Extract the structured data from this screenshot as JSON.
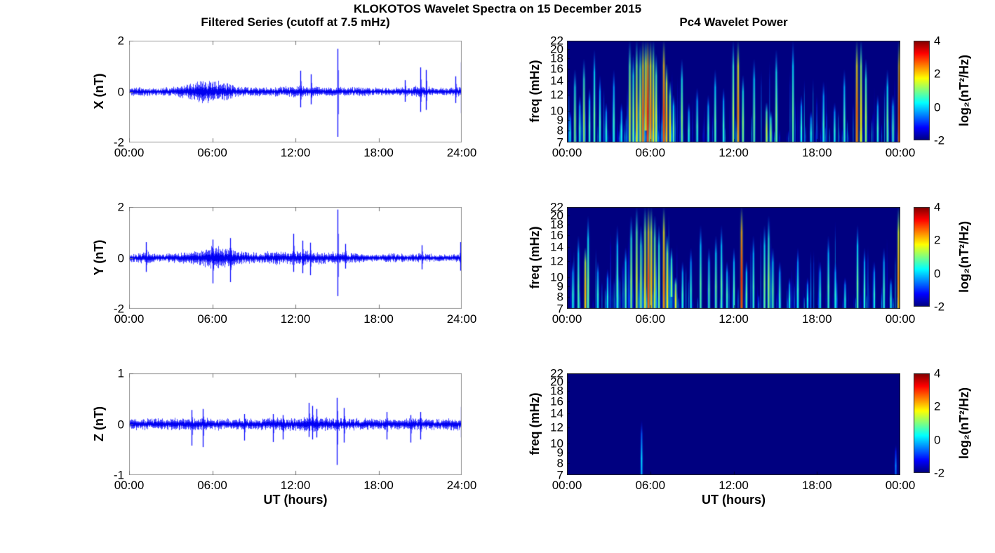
{
  "figure": {
    "title": "KLOKOTOS Wavelet Spectra on 15 December 2015",
    "background": "#ffffff",
    "line_color": "#0000ff",
    "colormap_name": "jet"
  },
  "chart_data": [
    {
      "type": "line",
      "panel": "left-top",
      "title": "Filtered Series (cutoff at 7.5 mHz)",
      "ylabel": "X (nT)",
      "ylim": [
        -2,
        2
      ],
      "yticks": [
        2,
        0,
        -2
      ],
      "xlim_hours": [
        0,
        24
      ],
      "xticks_hours": [
        0,
        6,
        12,
        18,
        24
      ],
      "xtick_labels": [
        "00:00",
        "06:00",
        "12:00",
        "18:00",
        "24:00"
      ],
      "line_color": "#0000ff",
      "seed": 11,
      "noise_envelope": [
        [
          0,
          0.18
        ],
        [
          1,
          0.2
        ],
        [
          2,
          0.17
        ],
        [
          3,
          0.2
        ],
        [
          4,
          0.3
        ],
        [
          4.7,
          0.4
        ],
        [
          5.4,
          0.52
        ],
        [
          5.9,
          0.48
        ],
        [
          6.4,
          0.45
        ],
        [
          7,
          0.38
        ],
        [
          7.6,
          0.28
        ],
        [
          8.2,
          0.22
        ],
        [
          9,
          0.2
        ],
        [
          10,
          0.2
        ],
        [
          11,
          0.22
        ],
        [
          12,
          0.26
        ],
        [
          12.6,
          0.24
        ],
        [
          13.2,
          0.22
        ],
        [
          14,
          0.18
        ],
        [
          15,
          0.2
        ],
        [
          16,
          0.2
        ],
        [
          17,
          0.2
        ],
        [
          18,
          0.17
        ],
        [
          19,
          0.17
        ],
        [
          20,
          0.2
        ],
        [
          20.8,
          0.26
        ],
        [
          21.5,
          0.24
        ],
        [
          22,
          0.17
        ],
        [
          23,
          0.17
        ],
        [
          23.7,
          0.22
        ],
        [
          24,
          0.3
        ]
      ],
      "spikes": [
        [
          12.35,
          0.82,
          -0.62
        ],
        [
          13.1,
          0.68,
          -0.5
        ],
        [
          15.02,
          1.68,
          -1.78
        ],
        [
          19.9,
          0.45,
          -0.4
        ],
        [
          21.0,
          0.95,
          -0.8
        ],
        [
          21.4,
          0.85,
          -0.72
        ],
        [
          23.55,
          0.6,
          -0.45
        ],
        [
          23.97,
          1.15,
          -0.85
        ]
      ]
    },
    {
      "type": "line",
      "panel": "left-middle",
      "ylabel": "Y (nT)",
      "ylim": [
        -2,
        2
      ],
      "yticks": [
        2,
        0,
        -2
      ],
      "xlim_hours": [
        0,
        24
      ],
      "xticks_hours": [
        0,
        6,
        12,
        18,
        24
      ],
      "xtick_labels": [
        "00:00",
        "06:00",
        "12:00",
        "18:00",
        "24:00"
      ],
      "line_color": "#0000ff",
      "seed": 22,
      "noise_envelope": [
        [
          0,
          0.2
        ],
        [
          0.8,
          0.24
        ],
        [
          1.3,
          0.28
        ],
        [
          2,
          0.2
        ],
        [
          3,
          0.2
        ],
        [
          4,
          0.26
        ],
        [
          5,
          0.32
        ],
        [
          5.7,
          0.45
        ],
        [
          6.2,
          0.52
        ],
        [
          6.8,
          0.45
        ],
        [
          7.3,
          0.5
        ],
        [
          7.8,
          0.35
        ],
        [
          8.5,
          0.26
        ],
        [
          9.5,
          0.26
        ],
        [
          10.5,
          0.3
        ],
        [
          11.5,
          0.3
        ],
        [
          12.5,
          0.3
        ],
        [
          13.5,
          0.28
        ],
        [
          14.5,
          0.26
        ],
        [
          15.5,
          0.24
        ],
        [
          16.5,
          0.22
        ],
        [
          17,
          0.15
        ],
        [
          18,
          0.16
        ],
        [
          19,
          0.22
        ],
        [
          20,
          0.15
        ],
        [
          21,
          0.2
        ],
        [
          22,
          0.16
        ],
        [
          23,
          0.16
        ],
        [
          23.7,
          0.2
        ],
        [
          24,
          0.3
        ]
      ],
      "spikes": [
        [
          1.2,
          0.62,
          -0.55
        ],
        [
          6.05,
          0.72,
          -1.0
        ],
        [
          7.3,
          0.78,
          -0.95
        ],
        [
          11.85,
          0.95,
          -0.55
        ],
        [
          12.5,
          0.68,
          -0.6
        ],
        [
          13.05,
          0.6,
          -0.68
        ],
        [
          15.02,
          1.9,
          -1.5
        ],
        [
          15.6,
          0.55,
          -0.42
        ],
        [
          21.1,
          0.5,
          -0.45
        ],
        [
          23.92,
          0.62,
          -0.5
        ]
      ]
    },
    {
      "type": "line",
      "panel": "left-bottom",
      "ylabel": "Z (nT)",
      "xlabel": "UT (hours)",
      "ylim": [
        -1,
        1
      ],
      "yticks": [
        1,
        0,
        -1
      ],
      "xlim_hours": [
        0,
        24
      ],
      "xticks_hours": [
        0,
        6,
        12,
        18,
        24
      ],
      "xtick_labels": [
        "00:00",
        "06:00",
        "12:00",
        "18:00",
        "24:00"
      ],
      "line_color": "#0000ff",
      "seed": 33,
      "noise_envelope": [
        [
          0,
          0.13
        ],
        [
          2,
          0.12
        ],
        [
          4,
          0.13
        ],
        [
          5,
          0.14
        ],
        [
          6,
          0.13
        ],
        [
          8,
          0.12
        ],
        [
          10,
          0.13
        ],
        [
          12,
          0.15
        ],
        [
          13,
          0.17
        ],
        [
          14,
          0.15
        ],
        [
          15,
          0.14
        ],
        [
          16,
          0.13
        ],
        [
          18,
          0.13
        ],
        [
          20,
          0.12
        ],
        [
          21,
          0.14
        ],
        [
          22,
          0.12
        ],
        [
          24,
          0.14
        ]
      ],
      "spikes": [
        [
          4.5,
          0.28,
          -0.42
        ],
        [
          5.3,
          0.3,
          -0.45
        ],
        [
          8.3,
          0.2,
          -0.32
        ],
        [
          10.4,
          0.2,
          -0.35
        ],
        [
          11.1,
          0.18,
          -0.3
        ],
        [
          12.95,
          0.42,
          -0.25
        ],
        [
          13.2,
          0.36,
          -0.3
        ],
        [
          13.5,
          0.3,
          -0.26
        ],
        [
          15.0,
          0.52,
          -0.8
        ],
        [
          15.5,
          0.32,
          -0.36
        ],
        [
          18.6,
          0.24,
          -0.3
        ],
        [
          20.3,
          0.18,
          -0.36
        ],
        [
          21.0,
          0.24,
          -0.3
        ],
        [
          23.95,
          0.34,
          -0.26
        ]
      ]
    },
    {
      "type": "heatmap",
      "panel": "right-top",
      "title": "Pc4 Wavelet Power",
      "ylabel": "freq (mHz)",
      "yscale": "log",
      "ylim": [
        7,
        22
      ],
      "yticks": [
        7,
        8,
        9,
        10,
        12,
        14,
        16,
        18,
        20,
        22
      ],
      "xlim_hours": [
        0,
        24
      ],
      "xticks_hours": [
        0,
        6,
        12,
        18,
        24
      ],
      "xtick_labels": [
        "00:00",
        "06:00",
        "12:00",
        "18:00",
        "00:00"
      ],
      "background_value": -2,
      "colorbar": {
        "label": "log₂(nT²/Hz)",
        "ticks": [
          4,
          2,
          0,
          -2
        ],
        "range": [
          -2,
          4
        ],
        "colormap": "jet"
      },
      "streaks": [
        [
          0.2,
          7,
          10,
          0.4
        ],
        [
          0.55,
          7,
          16,
          1.1
        ],
        [
          0.9,
          7,
          12,
          0.6
        ],
        [
          1.2,
          7,
          18,
          1.3
        ],
        [
          1.6,
          7,
          13,
          0.7
        ],
        [
          1.95,
          7,
          20,
          0.9
        ],
        [
          2.35,
          7,
          15,
          0.6
        ],
        [
          2.8,
          7,
          11,
          0.5
        ],
        [
          3.35,
          7,
          16,
          0.6
        ],
        [
          3.9,
          7,
          11,
          0.4
        ],
        [
          4.5,
          7,
          22,
          1.6
        ],
        [
          4.75,
          7,
          19,
          1.2
        ],
        [
          5.0,
          7,
          22,
          1.9
        ],
        [
          5.25,
          7,
          21,
          1.6
        ],
        [
          5.45,
          7,
          22,
          2.7
        ],
        [
          5.65,
          8,
          22,
          2.2
        ],
        [
          5.8,
          7,
          22,
          3.1
        ],
        [
          6.0,
          7,
          22,
          2.5
        ],
        [
          6.2,
          7,
          22,
          2.0
        ],
        [
          6.4,
          7,
          19,
          1.5
        ],
        [
          6.95,
          7,
          22,
          2.9
        ],
        [
          7.15,
          7,
          17,
          2.3
        ],
        [
          7.4,
          7,
          14,
          1.7
        ],
        [
          7.65,
          7,
          12,
          0.9
        ],
        [
          8.25,
          7,
          18,
          1.1
        ],
        [
          8.75,
          7,
          11,
          0.5
        ],
        [
          9.35,
          7,
          13,
          0.6
        ],
        [
          10.15,
          7,
          12,
          0.6
        ],
        [
          10.65,
          7,
          16,
          0.8
        ],
        [
          11.25,
          7,
          13,
          0.6
        ],
        [
          11.95,
          7,
          22,
          1.3
        ],
        [
          12.3,
          7,
          22,
          2.5
        ],
        [
          12.65,
          7,
          15,
          1.1
        ],
        [
          13.45,
          7,
          18,
          0.9
        ],
        [
          14.35,
          7,
          11,
          1.5
        ],
        [
          14.65,
          7,
          10,
          1.2
        ],
        [
          15.05,
          7,
          20,
          1.1
        ],
        [
          16.25,
          7,
          22,
          0.9
        ],
        [
          16.85,
          7,
          12,
          0.5
        ],
        [
          17.55,
          7,
          10,
          0.4
        ],
        [
          18.45,
          7,
          14,
          0.6
        ],
        [
          19.25,
          7,
          11,
          0.5
        ],
        [
          19.95,
          7,
          16,
          0.7
        ],
        [
          20.85,
          7,
          22,
          2.7
        ],
        [
          21.15,
          7,
          22,
          1.9
        ],
        [
          21.5,
          7,
          18,
          1.3
        ],
        [
          22.35,
          7,
          12,
          0.6
        ],
        [
          23.05,
          7,
          16,
          0.9
        ],
        [
          23.45,
          7,
          12,
          0.7
        ],
        [
          23.9,
          7,
          22,
          2.9
        ]
      ],
      "minor_streaks": {
        "count": 230,
        "intensity_range": [
          -1.7,
          0.5
        ],
        "cluster_hour": 5.8,
        "seed": 101
      }
    },
    {
      "type": "heatmap",
      "panel": "right-middle",
      "ylabel": "freq (mHz)",
      "yscale": "log",
      "ylim": [
        7,
        22
      ],
      "yticks": [
        7,
        8,
        9,
        10,
        12,
        14,
        16,
        18,
        20,
        22
      ],
      "xlim_hours": [
        0,
        24
      ],
      "xticks_hours": [
        0,
        6,
        12,
        18,
        24
      ],
      "xtick_labels": [
        "00:00",
        "06:00",
        "12:00",
        "18:00",
        "00:00"
      ],
      "background_value": -2,
      "colorbar": {
        "label": "log₂(nT²/Hz)",
        "ticks": [
          4,
          2,
          0,
          -2
        ],
        "range": [
          -2,
          4
        ],
        "colormap": "jet"
      },
      "streaks": [
        [
          0.4,
          7,
          12,
          0.5
        ],
        [
          0.8,
          7,
          16,
          0.8
        ],
        [
          1.3,
          7,
          14,
          2.2
        ],
        [
          1.5,
          7,
          20,
          1.0
        ],
        [
          2.2,
          7,
          12,
          0.5
        ],
        [
          2.9,
          7,
          11,
          0.4
        ],
        [
          3.6,
          7,
          18,
          0.7
        ],
        [
          4.2,
          7,
          14,
          0.8
        ],
        [
          4.6,
          7,
          20,
          1.2
        ],
        [
          5.0,
          7,
          22,
          1.6
        ],
        [
          5.3,
          7,
          18,
          1.3
        ],
        [
          5.6,
          7,
          22,
          2.0
        ],
        [
          5.85,
          7,
          22,
          2.8
        ],
        [
          6.05,
          7,
          22,
          2.2
        ],
        [
          6.3,
          7,
          20,
          1.6
        ],
        [
          6.6,
          7,
          18,
          1.2
        ],
        [
          6.95,
          7,
          22,
          2.6
        ],
        [
          7.2,
          7,
          16,
          2.0
        ],
        [
          7.5,
          8,
          14,
          1.2
        ],
        [
          7.8,
          7,
          10,
          1.8
        ],
        [
          8.3,
          7,
          12,
          0.6
        ],
        [
          8.9,
          7,
          14,
          0.5
        ],
        [
          9.6,
          7,
          18,
          0.8
        ],
        [
          10.2,
          7,
          14,
          0.7
        ],
        [
          10.7,
          7,
          16,
          0.9
        ],
        [
          11.1,
          7,
          18,
          0.8
        ],
        [
          11.5,
          7,
          12,
          0.6
        ],
        [
          12.0,
          7,
          14,
          0.7
        ],
        [
          12.55,
          7,
          22,
          3.0
        ],
        [
          12.9,
          7,
          12,
          0.8
        ],
        [
          13.4,
          7,
          16,
          0.7
        ],
        [
          14.2,
          7,
          18,
          1.0
        ],
        [
          14.5,
          7,
          20,
          1.2
        ],
        [
          14.8,
          7,
          14,
          0.8
        ],
        [
          15.3,
          7,
          12,
          0.6
        ],
        [
          16.0,
          7,
          10,
          0.4
        ],
        [
          16.6,
          7,
          14,
          0.5
        ],
        [
          17.3,
          7,
          10,
          0.3
        ],
        [
          18.2,
          7,
          12,
          0.5
        ],
        [
          18.8,
          7,
          16,
          0.7
        ],
        [
          19.3,
          7,
          12,
          0.5
        ],
        [
          20.0,
          7,
          10,
          0.4
        ],
        [
          20.9,
          7,
          18,
          0.9
        ],
        [
          21.4,
          7,
          14,
          0.6
        ],
        [
          22.1,
          7,
          12,
          0.5
        ],
        [
          22.8,
          7,
          14,
          0.6
        ],
        [
          23.3,
          7,
          10,
          0.5
        ],
        [
          23.85,
          7,
          22,
          2.4
        ]
      ],
      "minor_streaks": {
        "count": 215,
        "intensity_range": [
          -1.7,
          0.45
        ],
        "cluster_hour": 6.0,
        "seed": 202
      }
    },
    {
      "type": "heatmap",
      "panel": "right-bottom",
      "ylabel": "freq (mHz)",
      "xlabel": "UT (hours)",
      "yscale": "log",
      "ylim": [
        7,
        22
      ],
      "yticks": [
        7,
        8,
        9,
        10,
        12,
        14,
        16,
        18,
        20,
        22
      ],
      "xlim_hours": [
        0,
        24
      ],
      "xticks_hours": [
        0,
        6,
        12,
        18,
        24
      ],
      "xtick_labels": [
        "00:00",
        "06:00",
        "12:00",
        "18:00",
        "00:00"
      ],
      "background_value": -2,
      "colorbar": {
        "label": "log₂(nT²/Hz)",
        "ticks": [
          4,
          2,
          0,
          -2
        ],
        "range": [
          -2,
          4
        ],
        "colormap": "jet"
      },
      "streaks": [
        [
          5.35,
          7,
          13,
          0.1
        ],
        [
          23.65,
          7,
          10,
          -0.4
        ]
      ],
      "minor_streaks": {
        "count": 0,
        "intensity_range": [
          -1.8,
          -1.2
        ],
        "cluster_hour": 12,
        "seed": 303
      }
    }
  ]
}
